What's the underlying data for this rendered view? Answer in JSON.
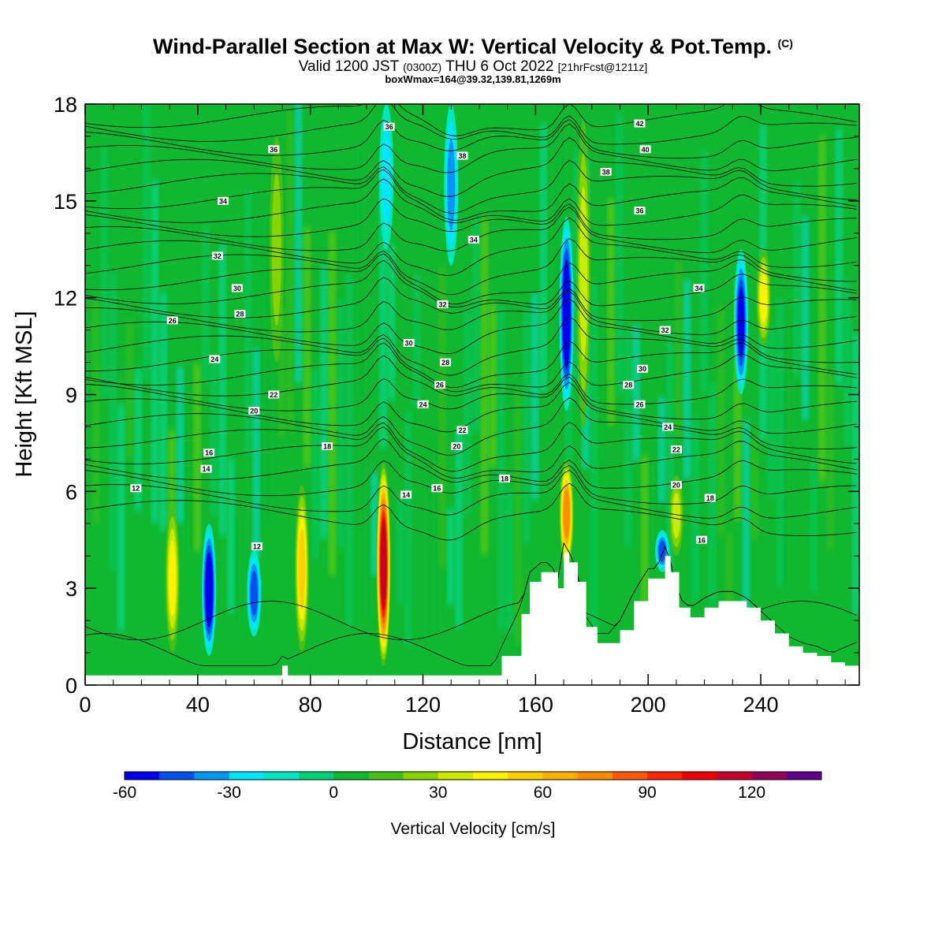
{
  "header": {
    "title": "Wind-Parallel Section at Max W: Vertical Velocity & Pot.Temp.",
    "copyright": "(C)",
    "valid_prefix": "Valid 1200 JST",
    "valid_utc": "(0300Z)",
    "valid_date": "THU 6 Oct 2022",
    "forecast": "[21hrFcst@1211z]",
    "boxinfo": "boxWmax=164@39.32,139.81,1269m"
  },
  "chart_data": {
    "type": "heatmap",
    "xlabel": "Distance [nm]",
    "ylabel": "Height [Kft MSL]",
    "xlim": [
      0,
      275
    ],
    "ylim": [
      0,
      18
    ],
    "x_ticks": [
      0,
      40,
      80,
      120,
      160,
      200,
      240
    ],
    "y_ticks": [
      0,
      3,
      6,
      9,
      12,
      15,
      18
    ],
    "colorbar": {
      "label": "Vertical Velocity [cm/s]",
      "min": -60,
      "max": 140,
      "step": 10,
      "tick_values": [
        -60,
        -30,
        0,
        30,
        60,
        90,
        120
      ],
      "colors": [
        "#0000ee",
        "#0050f0",
        "#0096f5",
        "#00e6ff",
        "#00e8c0",
        "#00d078",
        "#10b830",
        "#46c018",
        "#86d400",
        "#caea00",
        "#fff000",
        "#ffd000",
        "#ffae00",
        "#ff8c00",
        "#ff5a00",
        "#ff2600",
        "#ee0000",
        "#c4002a",
        "#920058",
        "#60008a"
      ]
    },
    "features": [
      {
        "x": 44,
        "y_bottom": 0.9,
        "y_top": 5.0,
        "w": -60
      },
      {
        "x": 60,
        "y_bottom": 1.5,
        "y_top": 4.2,
        "w": -40
      },
      {
        "x": 31,
        "y_bottom": 1.0,
        "y_top": 5.6,
        "w": 40
      },
      {
        "x": 77,
        "y_bottom": 1.0,
        "y_top": 6.2,
        "w": 50
      },
      {
        "x": 106,
        "y_bottom": 0.6,
        "y_top": 6.9,
        "w": 110
      },
      {
        "x": 171,
        "y_bottom": 3.6,
        "y_top": 7.0,
        "w": 70
      },
      {
        "x": 171,
        "y_bottom": 8.5,
        "y_top": 14.5,
        "w": -60
      },
      {
        "x": 177,
        "y_bottom": 8.0,
        "y_top": 17.5,
        "w": 30
      },
      {
        "x": 130,
        "y_bottom": 13.0,
        "y_top": 18.0,
        "w": -30
      },
      {
        "x": 107,
        "y_bottom": 13.5,
        "y_top": 18.0,
        "w": -20
      },
      {
        "x": 233,
        "y_bottom": 9.0,
        "y_top": 13.5,
        "w": -50
      },
      {
        "x": 241,
        "y_bottom": 10.5,
        "y_top": 13.5,
        "w": 40
      },
      {
        "x": 68,
        "y_bottom": 10.0,
        "y_top": 17.0,
        "w": 20
      },
      {
        "x": 205,
        "y_bottom": 3.5,
        "y_top": 4.8,
        "w": -40
      },
      {
        "x": 210,
        "y_bottom": 4.0,
        "y_top": 6.5,
        "w": 30
      }
    ],
    "terrain_profile": {
      "x": [
        0,
        10,
        20,
        30,
        40,
        50,
        60,
        68,
        70,
        72,
        80,
        90,
        100,
        110,
        120,
        130,
        140,
        145,
        148,
        155,
        158,
        162,
        165,
        168,
        170,
        172,
        175,
        178,
        182,
        186,
        190,
        195,
        200,
        203,
        206,
        208,
        211,
        215,
        220,
        225,
        230,
        235,
        240,
        245,
        250,
        255,
        260,
        265,
        270,
        275
      ],
      "y": [
        0.3,
        0.3,
        0.3,
        0.3,
        0.3,
        0.3,
        0.3,
        0.3,
        0.6,
        0.3,
        0.3,
        0.3,
        0.3,
        0.3,
        0.3,
        0.3,
        0.3,
        0.3,
        0.9,
        2.2,
        3.2,
        3.5,
        3.5,
        3.0,
        4.1,
        3.8,
        3.2,
        1.8,
        1.3,
        1.3,
        1.7,
        2.6,
        3.3,
        3.3,
        4.0,
        3.5,
        2.4,
        2.1,
        2.4,
        2.6,
        2.6,
        2.4,
        2.0,
        1.6,
        1.2,
        1.0,
        0.9,
        0.7,
        0.6,
        0.6
      ]
    },
    "isentropes": {
      "contour_interval": 2,
      "labels": [
        {
          "x": 18,
          "y": 6.1,
          "text": "12"
        },
        {
          "x": 43,
          "y": 6.7,
          "text": "14"
        },
        {
          "x": 44,
          "y": 7.2,
          "text": "16"
        },
        {
          "x": 60,
          "y": 8.5,
          "text": "20"
        },
        {
          "x": 67,
          "y": 9.0,
          "text": "22"
        },
        {
          "x": 46,
          "y": 10.1,
          "text": "24"
        },
        {
          "x": 31,
          "y": 11.3,
          "text": "26"
        },
        {
          "x": 55,
          "y": 11.5,
          "text": "28"
        },
        {
          "x": 54,
          "y": 12.3,
          "text": "30"
        },
        {
          "x": 47,
          "y": 13.3,
          "text": "32"
        },
        {
          "x": 49,
          "y": 15.0,
          "text": "34"
        },
        {
          "x": 67,
          "y": 16.6,
          "text": "36"
        },
        {
          "x": 86,
          "y": 7.4,
          "text": "18"
        },
        {
          "x": 114,
          "y": 5.9,
          "text": "14"
        },
        {
          "x": 125,
          "y": 6.1,
          "text": "16"
        },
        {
          "x": 120,
          "y": 8.7,
          "text": "24"
        },
        {
          "x": 126,
          "y": 9.3,
          "text": "26"
        },
        {
          "x": 128,
          "y": 10.0,
          "text": "28"
        },
        {
          "x": 115,
          "y": 10.6,
          "text": "30"
        },
        {
          "x": 127,
          "y": 11.8,
          "text": "32"
        },
        {
          "x": 138,
          "y": 13.8,
          "text": "34"
        },
        {
          "x": 134,
          "y": 7.9,
          "text": "22"
        },
        {
          "x": 132,
          "y": 7.4,
          "text": "20"
        },
        {
          "x": 149,
          "y": 6.4,
          "text": "18"
        },
        {
          "x": 108,
          "y": 17.3,
          "text": "36"
        },
        {
          "x": 134,
          "y": 16.4,
          "text": "38"
        },
        {
          "x": 61,
          "y": 4.3,
          "text": "12"
        },
        {
          "x": 197,
          "y": 17.4,
          "text": "42"
        },
        {
          "x": 199,
          "y": 16.6,
          "text": "40"
        },
        {
          "x": 185,
          "y": 15.9,
          "text": "38"
        },
        {
          "x": 197,
          "y": 14.7,
          "text": "36"
        },
        {
          "x": 218,
          "y": 12.3,
          "text": "34"
        },
        {
          "x": 206,
          "y": 11.0,
          "text": "32"
        },
        {
          "x": 198,
          "y": 9.8,
          "text": "30"
        },
        {
          "x": 193,
          "y": 9.3,
          "text": "28"
        },
        {
          "x": 197,
          "y": 8.7,
          "text": "26"
        },
        {
          "x": 207,
          "y": 8.0,
          "text": "24"
        },
        {
          "x": 210,
          "y": 7.3,
          "text": "22"
        },
        {
          "x": 210,
          "y": 6.2,
          "text": "20"
        },
        {
          "x": 222,
          "y": 5.8,
          "text": "18"
        },
        {
          "x": 219,
          "y": 4.5,
          "text": "16"
        }
      ]
    }
  }
}
